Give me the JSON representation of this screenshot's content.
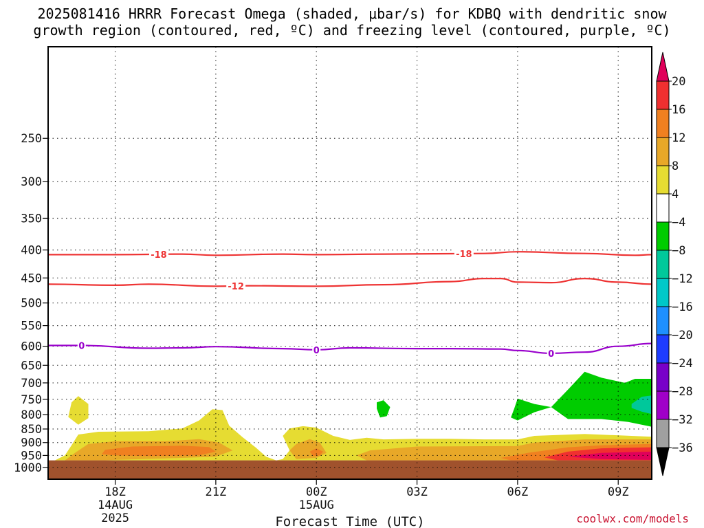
{
  "title": {
    "line1": "2025081416 HRRR Forecast Omega (shaded, μbar/s) for KDBQ with dendritic snow",
    "line2": "growth region (contoured, red, ºC) and freezing level (contoured, purple, ºC)"
  },
  "credit": "coolwx.com/models",
  "chart_data": {
    "type": "time-height cross section",
    "xlabel": "Forecast Time (UTC)",
    "x_range_hours": [
      -2.0,
      16.0
    ],
    "x_ticks": [
      {
        "h": 0,
        "lines": [
          "18Z",
          "14AUG",
          "2025"
        ]
      },
      {
        "h": 3,
        "lines": [
          "21Z"
        ]
      },
      {
        "h": 6,
        "lines": [
          "00Z",
          "15AUG"
        ]
      },
      {
        "h": 9,
        "lines": [
          "03Z"
        ]
      },
      {
        "h": 12,
        "lines": [
          "06Z"
        ]
      },
      {
        "h": 15,
        "lines": [
          "09Z"
        ]
      }
    ],
    "y_axis": {
      "units": "hPa",
      "scale": "log pressure",
      "range": [
        1050,
        170
      ],
      "ticks": [
        250,
        300,
        350,
        400,
        450,
        500,
        550,
        600,
        650,
        700,
        750,
        800,
        850,
        900,
        950,
        1000
      ]
    },
    "grid": true,
    "ground_below_hPa": 970,
    "colors": {
      "ground": "#A0522D",
      "dgz_contour": "#EE3333",
      "freezing_contour": "#9900CC"
    },
    "colorbar": {
      "boundaries": [
        20,
        16,
        12,
        8,
        4,
        -4,
        -8,
        -12,
        -16,
        -20,
        -24,
        -28,
        -32,
        -36
      ],
      "colors": [
        "#E0005A",
        "#F03030",
        "#F08020",
        "#E8A828",
        "#E6DC32",
        "#FFFFFF",
        "#00CC00",
        "#00C89B",
        "#00C8C8",
        "#1E90FF",
        "#1E3CFF",
        "#7800C8",
        "#A000C8",
        "#A0A0A0",
        "#000000"
      ]
    },
    "contours": [
      {
        "value": -18,
        "label": "-18",
        "color": "#EE3333",
        "points": [
          [
            -2,
            408
          ],
          [
            0,
            408
          ],
          [
            2,
            407
          ],
          [
            3,
            409
          ],
          [
            5,
            407
          ],
          [
            6,
            408
          ],
          [
            8,
            407
          ],
          [
            11,
            406
          ],
          [
            12,
            403
          ],
          [
            14,
            406
          ],
          [
            15.5,
            409
          ],
          [
            16,
            408
          ]
        ],
        "label_at": [
          1.3,
          10.4
        ]
      },
      {
        "value": -12,
        "label": "-12",
        "color": "#EE3333",
        "points": [
          [
            -2,
            462
          ],
          [
            0,
            464
          ],
          [
            1,
            462
          ],
          [
            3,
            466
          ],
          [
            4,
            465
          ],
          [
            6,
            466
          ],
          [
            8,
            463
          ],
          [
            10,
            457
          ],
          [
            11,
            451
          ],
          [
            11.5,
            451
          ],
          [
            12,
            458
          ],
          [
            13,
            459
          ],
          [
            14,
            451
          ],
          [
            15,
            458
          ],
          [
            16,
            462
          ]
        ],
        "label_at": [
          3.6
        ]
      },
      {
        "value": 0,
        "label": "0",
        "color": "#9900CC",
        "points": [
          [
            -2,
            598
          ],
          [
            -1,
            598
          ],
          [
            1,
            605
          ],
          [
            2,
            604
          ],
          [
            3,
            601
          ],
          [
            5,
            606
          ],
          [
            6,
            609
          ],
          [
            7,
            604
          ],
          [
            9,
            606
          ],
          [
            10,
            606
          ],
          [
            11.5,
            607
          ],
          [
            12,
            611
          ],
          [
            13,
            618
          ],
          [
            14,
            615
          ],
          [
            15,
            600
          ],
          [
            16,
            593
          ]
        ],
        "label_at": [
          -1.0,
          6.0,
          13.0
        ]
      }
    ],
    "filled_regions": [
      {
        "color": "#E6DC32",
        "points": [
          [
            -1.3,
            760
          ],
          [
            -1.1,
            740
          ],
          [
            -0.8,
            765
          ],
          [
            -0.8,
            812
          ],
          [
            -1.1,
            835
          ],
          [
            -1.4,
            808
          ]
        ]
      },
      {
        "color": "#E6DC32",
        "points": [
          [
            -1.8,
            970
          ],
          [
            -1.5,
            950
          ],
          [
            -1.3,
            910
          ],
          [
            -1.1,
            870
          ],
          [
            -0.5,
            860
          ],
          [
            1,
            858
          ],
          [
            2,
            848
          ],
          [
            2.5,
            820
          ],
          [
            2.9,
            782
          ],
          [
            3.2,
            785
          ],
          [
            3.4,
            838
          ],
          [
            3.8,
            880
          ],
          [
            4.2,
            920
          ],
          [
            4.5,
            955
          ],
          [
            4.8,
            970
          ],
          [
            5,
            965
          ],
          [
            5.2,
            930
          ],
          [
            5.0,
            875
          ],
          [
            5.2,
            848
          ],
          [
            5.6,
            840
          ],
          [
            6.0,
            845
          ],
          [
            6.5,
            875
          ],
          [
            7,
            890
          ],
          [
            7.5,
            882
          ],
          [
            8,
            888
          ],
          [
            9,
            886
          ],
          [
            10,
            886
          ],
          [
            11,
            888
          ],
          [
            12,
            888
          ],
          [
            12.5,
            875
          ],
          [
            14,
            868
          ],
          [
            16,
            878
          ],
          [
            16,
            970
          ]
        ]
      },
      {
        "color": "#E8A828",
        "points": [
          [
            -1.5,
            970
          ],
          [
            -1.2,
            940
          ],
          [
            -0.8,
            905
          ],
          [
            0,
            895
          ],
          [
            1.5,
            895
          ],
          [
            2.5,
            887
          ],
          [
            3.1,
            900
          ],
          [
            3.5,
            930
          ],
          [
            3.0,
            955
          ],
          [
            1.5,
            962
          ],
          [
            0,
            968
          ],
          [
            -0.3,
            970
          ]
        ]
      },
      {
        "color": "#E8A828",
        "points": [
          [
            5.4,
            965
          ],
          [
            5.2,
            930
          ],
          [
            5.4,
            905
          ],
          [
            5.8,
            887
          ],
          [
            6.1,
            900
          ],
          [
            6.3,
            940
          ],
          [
            6.0,
            960
          ]
        ]
      },
      {
        "color": "#E8A828",
        "points": [
          [
            7.2,
            950
          ],
          [
            7.6,
            930
          ],
          [
            9,
            915
          ],
          [
            12,
            913
          ],
          [
            12.5,
            900
          ],
          [
            14,
            888
          ],
          [
            16,
            888
          ],
          [
            16,
            970
          ],
          [
            7.5,
            970
          ]
        ]
      },
      {
        "color": "#F08020",
        "points": [
          [
            -0.4,
            945
          ],
          [
            -0.3,
            928
          ],
          [
            0.5,
            915
          ],
          [
            2.0,
            912
          ],
          [
            2.8,
            917
          ],
          [
            3.0,
            935
          ],
          [
            2.5,
            950
          ],
          [
            1,
            952
          ],
          [
            0,
            950
          ]
        ]
      },
      {
        "color": "#F08020",
        "points": [
          [
            5.8,
            935
          ],
          [
            6.0,
            922
          ],
          [
            6.2,
            935
          ],
          [
            6.1,
            950
          ],
          [
            5.9,
            952
          ]
        ]
      },
      {
        "color": "#F08020",
        "points": [
          [
            11.5,
            960
          ],
          [
            12.3,
            940
          ],
          [
            13.5,
            918
          ],
          [
            14.5,
            910
          ],
          [
            16,
            905
          ],
          [
            16,
            970
          ],
          [
            11.8,
            970
          ]
        ]
      },
      {
        "color": "#F03030",
        "points": [
          [
            12.8,
            958
          ],
          [
            13.5,
            935
          ],
          [
            14.5,
            922
          ],
          [
            16,
            918
          ],
          [
            16,
            970
          ],
          [
            13.2,
            970
          ]
        ]
      },
      {
        "color": "#E0005A",
        "points": [
          [
            13.5,
            955
          ],
          [
            14.5,
            940
          ],
          [
            16,
            935
          ],
          [
            16,
            968
          ],
          [
            14.5,
            965
          ]
        ]
      },
      {
        "color": "#00CC00",
        "points": [
          [
            7.8,
            760
          ],
          [
            8.0,
            753
          ],
          [
            8.2,
            775
          ],
          [
            8.1,
            805
          ],
          [
            7.9,
            810
          ],
          [
            7.8,
            780
          ]
        ]
      },
      {
        "color": "#00CC00",
        "points": [
          [
            11.8,
            810
          ],
          [
            11.9,
            780
          ],
          [
            12.0,
            748
          ],
          [
            12.5,
            765
          ],
          [
            13.0,
            775
          ],
          [
            13.5,
            720
          ],
          [
            14.0,
            668
          ],
          [
            14.5,
            685
          ],
          [
            15.2,
            700
          ],
          [
            15.5,
            688
          ],
          [
            16,
            688
          ],
          [
            16,
            842
          ],
          [
            15.3,
            825
          ],
          [
            14.5,
            815
          ],
          [
            13.5,
            815
          ],
          [
            13.0,
            775
          ],
          [
            12.5,
            792
          ],
          [
            12.0,
            820
          ]
        ]
      },
      {
        "color": "#00C89B",
        "points": [
          [
            15.4,
            765
          ],
          [
            15.7,
            742
          ],
          [
            16,
            738
          ],
          [
            16,
            798
          ],
          [
            15.7,
            790
          ],
          [
            15.4,
            778
          ]
        ]
      }
    ]
  }
}
